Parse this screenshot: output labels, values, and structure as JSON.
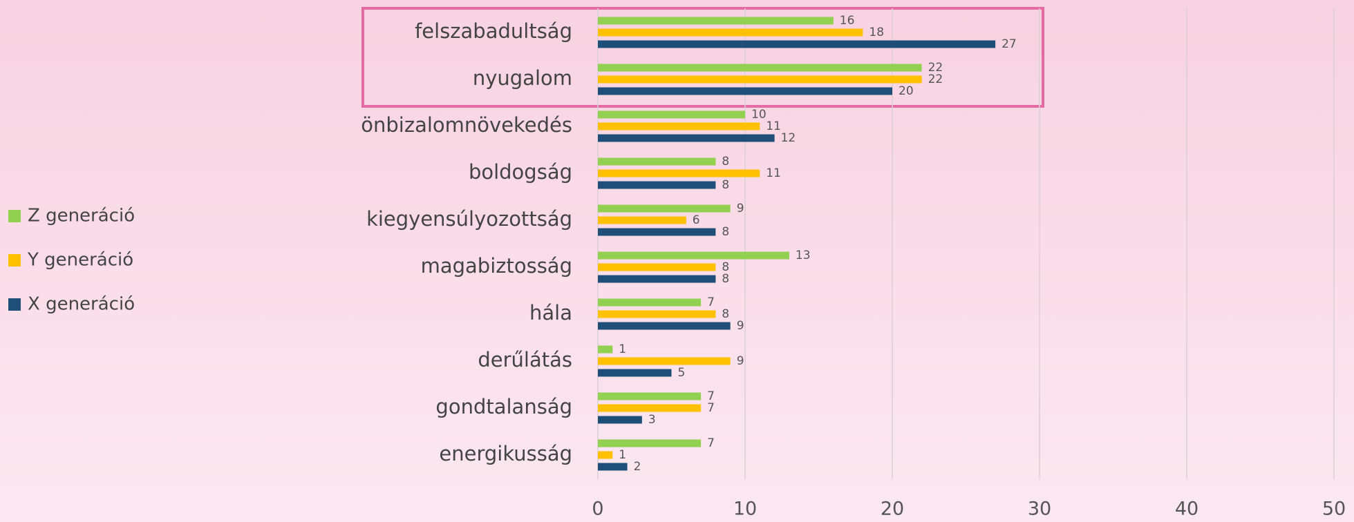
{
  "chart_data": {
    "type": "bar",
    "orientation": "horizontal",
    "categories": [
      "felszabadultság",
      "nyugalom",
      "önbizalomnövekedés",
      "boldogság",
      "kiegyensúlyozottság",
      "magabiztosság",
      "hála",
      "derűlátás",
      "gondtalanság",
      "energikusság"
    ],
    "series": [
      {
        "name": "Z generáció",
        "color": "#92d050",
        "values": [
          16,
          22,
          10,
          8,
          9,
          13,
          7,
          1,
          7,
          7
        ]
      },
      {
        "name": "Y generáció",
        "color": "#ffc000",
        "values": [
          18,
          22,
          11,
          11,
          6,
          8,
          8,
          9,
          7,
          1
        ]
      },
      {
        "name": "X generáció",
        "color": "#1f4e79",
        "values": [
          27,
          20,
          12,
          8,
          8,
          8,
          9,
          5,
          3,
          2
        ]
      }
    ],
    "xlim": [
      0,
      50
    ],
    "xticks": [
      0,
      10,
      20,
      30,
      40,
      50
    ],
    "grid": true,
    "legend": "left"
  }
}
